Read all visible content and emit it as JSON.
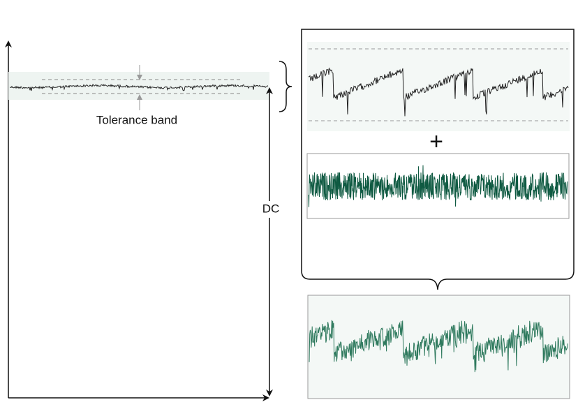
{
  "labels": {
    "tolerance": "Tolerance band",
    "dc": "DC",
    "plus": "+"
  }
}
